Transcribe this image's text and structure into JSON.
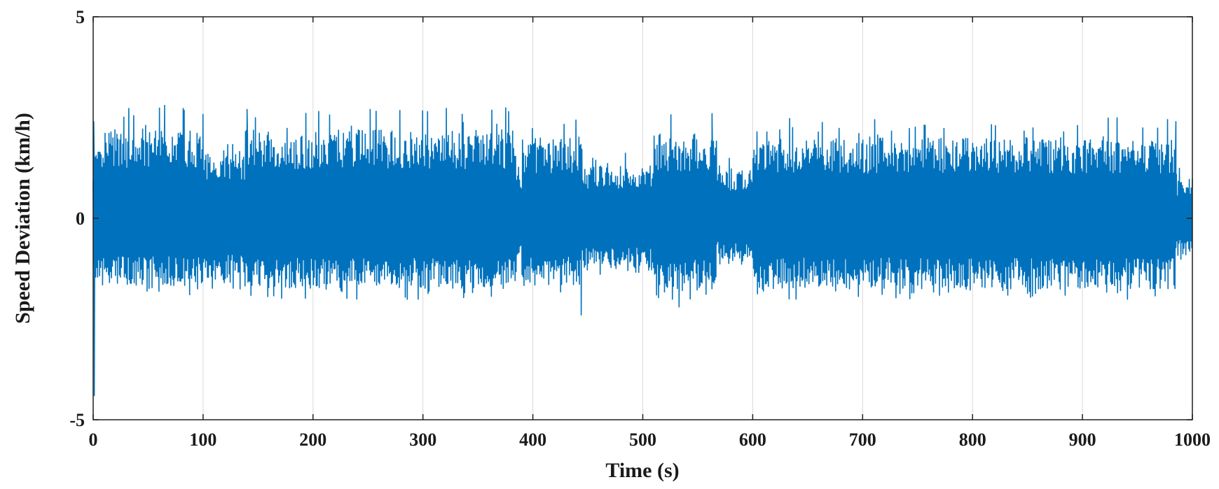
{
  "chart_data": {
    "type": "line",
    "title": "",
    "xlabel": "Time (s)",
    "ylabel": "Speed Deviation (km/h)",
    "xlim": [
      0,
      1000
    ],
    "ylim": [
      -5,
      5
    ],
    "xticks": [
      0,
      100,
      200,
      300,
      400,
      500,
      600,
      700,
      800,
      900,
      1000
    ],
    "yticks": [
      -5,
      0,
      5
    ],
    "xtick_labels": [
      "0",
      "100",
      "200",
      "300",
      "400",
      "500",
      "600",
      "700",
      "800",
      "900",
      "1000"
    ],
    "ytick_labels": [
      "-5",
      "0",
      "5"
    ],
    "grid": "vertical",
    "legend": "none",
    "series": [
      {
        "color": "#0072BD",
        "envelope": [
          {
            "x": [
              0,
              10
            ],
            "upper": 1.7,
            "lower": -1.7
          },
          {
            "x": [
              10,
              100
            ],
            "upper": 2.2,
            "lower": -1.7
          },
          {
            "x": [
              100,
              138
            ],
            "upper": 1.7,
            "lower": -1.6
          },
          {
            "x": [
              138,
              385
            ],
            "upper": 2.2,
            "lower": -1.75
          },
          {
            "x": [
              385,
              390
            ],
            "upper": 1.1,
            "lower": -1.2
          },
          {
            "x": [
              390,
              445
            ],
            "upper": 2.0,
            "lower": -1.7
          },
          {
            "x": [
              445,
              510
            ],
            "upper": 1.3,
            "lower": -1.3
          },
          {
            "x": [
              510,
              567
            ],
            "upper": 2.1,
            "lower": -1.8
          },
          {
            "x": [
              567,
              600
            ],
            "upper": 1.2,
            "lower": -1.0
          },
          {
            "x": [
              600,
              985
            ],
            "upper": 2.0,
            "lower": -1.75
          },
          {
            "x": [
              985,
              1000
            ],
            "upper": 1.0,
            "lower": -0.9
          }
        ],
        "extremes": [
          {
            "x": 0.5,
            "y": 2.4
          },
          {
            "x": 1,
            "y": -4.4
          },
          {
            "x": 65,
            "y": 2.8
          },
          {
            "x": 140,
            "y": 2.7
          },
          {
            "x": 252,
            "y": 2.7
          },
          {
            "x": 444,
            "y": -2.4
          },
          {
            "x": 533,
            "y": -2.2
          },
          {
            "x": 563,
            "y": 2.6
          },
          {
            "x": 985,
            "y": 2.4
          }
        ]
      }
    ]
  }
}
